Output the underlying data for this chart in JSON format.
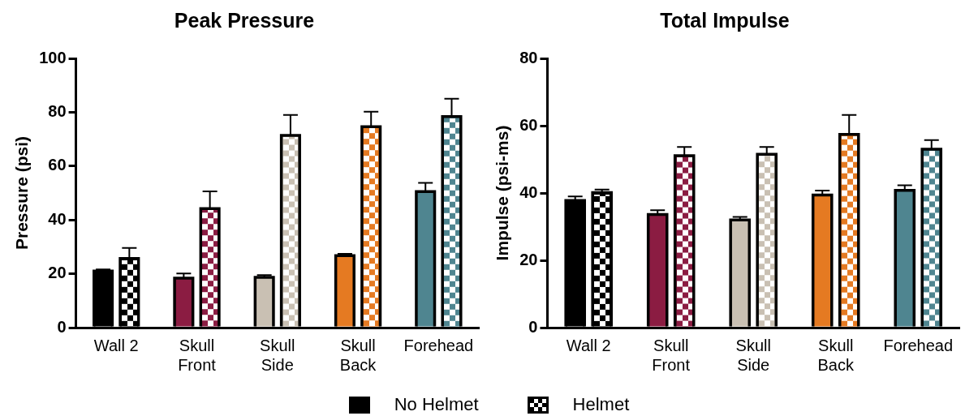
{
  "chart_data": [
    {
      "type": "bar",
      "title": "Peak Pressure",
      "ylabel": "Pressure (psi)",
      "categories": [
        "Wall 2",
        "Skull Front",
        "Skull Side",
        "Skull Back",
        "Forehead"
      ],
      "ylim": [
        0,
        100
      ],
      "yticks": [
        0,
        20,
        40,
        60,
        80,
        100
      ],
      "legend": "bottom",
      "series": [
        {
          "name": "No Helmet",
          "color": "#000000",
          "colors": [
            "#000000",
            "#8b1c42",
            "#c9c0b3",
            "#e57a22",
            "#4f8590"
          ],
          "values": [
            21,
            18.4,
            18.7,
            26.7,
            50.5
          ],
          "errors": [
            [
              21,
              21.6
            ],
            [
              18.4,
              20.1
            ],
            [
              18.7,
              19.5
            ],
            [
              26.7,
              27.4
            ],
            [
              50.5,
              53.8
            ]
          ]
        },
        {
          "name": "Helmet",
          "color": "#000000",
          "colors": [
            "#000000",
            "#8b1c42",
            "#c9c0b3",
            "#e57a22",
            "#4f8590"
          ],
          "values": [
            25.7,
            44.2,
            71.4,
            74.6,
            78.4
          ],
          "errors": [
            [
              25.7,
              29.6
            ],
            [
              44.2,
              50.6
            ],
            [
              71.4,
              79
            ],
            [
              74.6,
              80.2
            ],
            [
              78.4,
              85
            ]
          ]
        }
      ]
    },
    {
      "type": "bar",
      "title": "Total Impulse",
      "ylabel": "Impulse (psi-ms)",
      "categories": [
        "Wall 2",
        "Skull Front",
        "Skull Side",
        "Skull Back",
        "Forehead"
      ],
      "ylim": [
        0,
        80
      ],
      "yticks": [
        0,
        20,
        40,
        60,
        80
      ],
      "series": [
        {
          "name": "No Helmet",
          "color": "#000000",
          "colors": [
            "#000000",
            "#8b1c42",
            "#c9c0b3",
            "#e57a22",
            "#4f8590"
          ],
          "values": [
            37.8,
            33.6,
            32,
            39.4,
            40.8
          ],
          "errors": [
            [
              37.8,
              39
            ],
            [
              33.6,
              34.9
            ],
            [
              32,
              32.9
            ],
            [
              39.4,
              40.7
            ],
            [
              40.8,
              42.3
            ]
          ]
        },
        {
          "name": "Helmet",
          "color": "#000000",
          "colors": [
            "#000000",
            "#8b1c42",
            "#c9c0b3",
            "#e57a22",
            "#4f8590"
          ],
          "values": [
            40.1,
            51.1,
            51.5,
            57.4,
            53
          ],
          "errors": [
            [
              40.1,
              41
            ],
            [
              51.1,
              53.7
            ],
            [
              51.5,
              53.7
            ],
            [
              57.4,
              63.2
            ],
            [
              53,
              55.7
            ]
          ]
        }
      ]
    }
  ]
}
